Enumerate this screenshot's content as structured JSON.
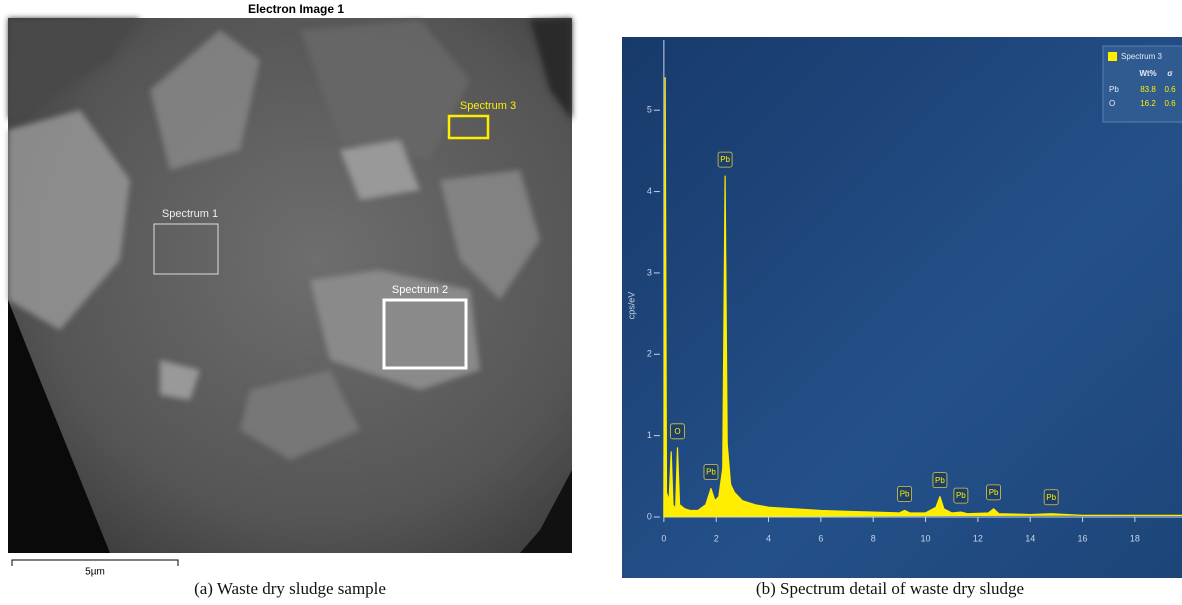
{
  "figure_a": {
    "title": "Electron Image 1",
    "regions": [
      "Spectrum 1",
      "Spectrum 2",
      "Spectrum 3"
    ],
    "scale_bar": "5µm",
    "caption": "(a) Waste dry sludge sample"
  },
  "figure_b": {
    "caption": "(b) Spectrum detail of waste dry sludge"
  },
  "chart_data": {
    "type": "line",
    "y_label": "cps/eV",
    "xlim": [
      -1.6,
      19.8
    ],
    "ylim": [
      -0.75,
      5.9
    ],
    "xticks": [
      0,
      2,
      4,
      6,
      8,
      10,
      12,
      14,
      16,
      18
    ],
    "yticks": [
      0,
      1,
      2,
      3,
      4,
      5
    ],
    "x": [
      0,
      0.05,
      0.1,
      0.2,
      0.28,
      0.35,
      0.45,
      0.52,
      0.6,
      0.8,
      1.0,
      1.3,
      1.6,
      1.8,
      1.95,
      2.1,
      2.25,
      2.34,
      2.42,
      2.55,
      2.7,
      3.0,
      3.5,
      4,
      5,
      6,
      7,
      8,
      9,
      9.2,
      9.4,
      10,
      10.4,
      10.55,
      10.7,
      11,
      11.35,
      11.6,
      12.4,
      12.6,
      12.8,
      14,
      14.8,
      16,
      18,
      19.8
    ],
    "series": [
      {
        "name": "Spectrum 3",
        "color": "#ffee00",
        "values": [
          0,
          5.4,
          0.3,
          0.2,
          0.8,
          0.15,
          0.1,
          0.85,
          0.15,
          0.1,
          0.08,
          0.08,
          0.15,
          0.35,
          0.2,
          0.25,
          0.6,
          4.19,
          0.9,
          0.4,
          0.3,
          0.2,
          0.15,
          0.12,
          0.1,
          0.08,
          0.07,
          0.06,
          0.05,
          0.08,
          0.05,
          0.05,
          0.12,
          0.25,
          0.1,
          0.05,
          0.06,
          0.04,
          0.05,
          0.1,
          0.04,
          0.03,
          0.04,
          0.02,
          0.02,
          0.02
        ]
      }
    ],
    "peaks": [
      {
        "label": "O",
        "x": 0.52
      },
      {
        "label": "Pb",
        "x": 1.8
      },
      {
        "label": "Pb",
        "x": 2.34
      },
      {
        "label": "Pb",
        "x": 9.2
      },
      {
        "label": "Pb",
        "x": 10.55
      },
      {
        "label": "Pb",
        "x": 11.35
      },
      {
        "label": "Pb",
        "x": 12.6
      },
      {
        "label": "Pb",
        "x": 14.8
      }
    ],
    "composition": {
      "columns": [
        "Wt%",
        "σ"
      ],
      "rows": [
        [
          "Pb",
          83.8,
          0.6
        ],
        [
          "O",
          16.2,
          0.6
        ]
      ]
    }
  }
}
